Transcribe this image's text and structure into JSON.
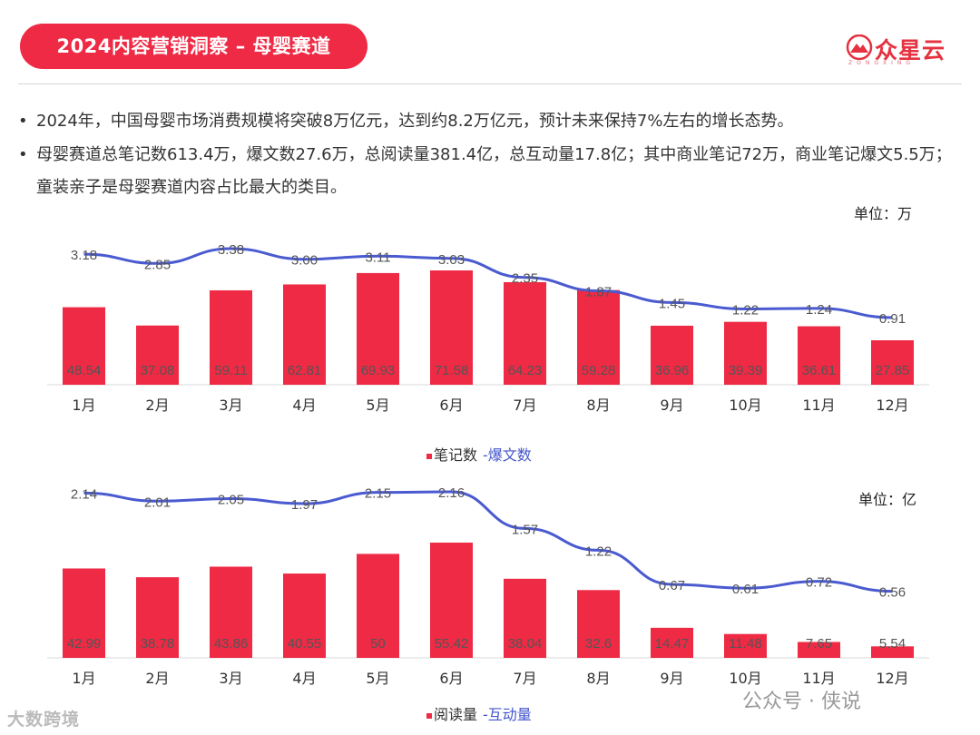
{
  "header": {
    "title": "2024内容营销洞察 – 母婴赛道"
  },
  "logo": {
    "name": "众星云",
    "subtitle": "ZONGXING",
    "color": "#e53240"
  },
  "bullets": [
    "2024年，中国母婴市场消费规模将突破8万亿元，达到约8.2万亿元，预计未来保持7%左右的增长态势。",
    "母婴赛道总笔记数613.4万，爆文数27.6万，总阅读量381.4亿，总互动量17.8亿；其中商业笔记72万，商业笔记爆文5.5万；童装亲子是母婴赛道内容占比最大的类目。"
  ],
  "colors": {
    "bar": "#ee2a45",
    "line": "#4a5ad0",
    "title_bg": "#ee2a45"
  },
  "chart_data": [
    {
      "type": "bar",
      "title": "",
      "unit": "单位：万",
      "categories": [
        "1月",
        "2月",
        "3月",
        "4月",
        "5月",
        "6月",
        "7月",
        "8月",
        "9月",
        "10月",
        "11月",
        "12月"
      ],
      "series": [
        {
          "name": "笔记数",
          "kind": "bar",
          "values": [
            48.54,
            37.08,
            59.11,
            62.81,
            69.93,
            71.58,
            64.23,
            59.28,
            36.96,
            39.39,
            36.61,
            27.85
          ]
        },
        {
          "name": "爆文数",
          "kind": "line",
          "values": [
            3.18,
            2.85,
            3.38,
            3.0,
            3.11,
            3.03,
            2.35,
            1.87,
            1.45,
            1.22,
            1.24,
            0.91
          ]
        }
      ],
      "labels_bar": [
        "48.54",
        "37.08",
        "59.11",
        "62.81",
        "69.93",
        "71.58",
        "64.23",
        "59.28",
        "36.96",
        "39.39",
        "36.61",
        "27.85"
      ],
      "labels_line": [
        "3.18",
        "2.85",
        "3.38",
        "3.00",
        "3.11",
        "3.03",
        "2.35",
        "1.87",
        "1.45",
        "1.22",
        "1.24",
        "0.91"
      ],
      "legend": [
        "笔记数",
        "-爆文数"
      ],
      "bar_ylim": [
        0,
        100
      ],
      "line_ylim": [
        0,
        6.5
      ]
    },
    {
      "type": "bar",
      "title": "",
      "unit": "单位：亿",
      "categories": [
        "1月",
        "2月",
        "3月",
        "4月",
        "5月",
        "6月",
        "7月",
        "8月",
        "9月",
        "10月",
        "11月",
        "12月"
      ],
      "series": [
        {
          "name": "阅读量",
          "kind": "bar",
          "values": [
            42.99,
            38.78,
            43.86,
            40.55,
            50,
            55.42,
            38.04,
            32.6,
            14.47,
            11.48,
            7.65,
            5.54
          ]
        },
        {
          "name": "互动量",
          "kind": "line",
          "values": [
            2.14,
            2.01,
            2.05,
            1.97,
            2.15,
            2.16,
            1.57,
            1.22,
            0.67,
            0.61,
            0.72,
            0.56
          ]
        }
      ],
      "labels_bar": [
        "42.99",
        "38.78",
        "43.86",
        "40.55",
        "50",
        "55.42",
        "38.04",
        "32.6",
        "14.47",
        "11.48",
        "7.65",
        "5.54"
      ],
      "labels_line": [
        "2.14",
        "2.01",
        "2.05",
        "1.97",
        "2.15",
        "2.16",
        "1.57",
        "1.22",
        "0.67",
        "0.61",
        "0.72",
        "0.56"
      ],
      "legend": [
        "阅读量",
        "-互动量"
      ],
      "bar_ylim": [
        0,
        72
      ],
      "line_ylim": [
        0,
        2.7
      ]
    }
  ],
  "footer": {
    "left": "大数跨境",
    "right": "公众号 · 侠说"
  }
}
